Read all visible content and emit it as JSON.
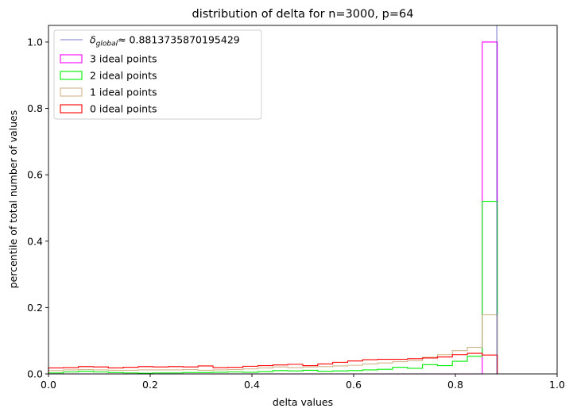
{
  "chart_data": {
    "type": "histogram",
    "title": "distribution of delta for n=3000, p=64",
    "xlabel": "delta values",
    "ylabel": "percentile of total number of values",
    "xlim": [
      0,
      1.0
    ],
    "ylim": [
      0,
      1.05
    ],
    "xticks": [
      "0.0",
      "0.2",
      "0.4",
      "0.6",
      "0.8",
      "1.0"
    ],
    "xtick_values": [
      0,
      0.2,
      0.4,
      0.6,
      0.8,
      1.0
    ],
    "yticks": [
      "0.0",
      "0.2",
      "0.4",
      "0.6",
      "0.8",
      "1.0"
    ],
    "ytick_values": [
      0,
      0.2,
      0.4,
      0.6,
      0.8,
      1.0
    ],
    "legend_position": "top-left",
    "reference_line": {
      "x": 0.8813735870195429,
      "label_symbol": "δ",
      "label_subscript": "global",
      "label_value": "≈ 0.8813735870195429",
      "color": "#4b4bbf"
    },
    "bin_edges": [
      0.0,
      0.0294,
      0.0588,
      0.0882,
      0.1176,
      0.1471,
      0.1765,
      0.2059,
      0.2353,
      0.2647,
      0.2941,
      0.3235,
      0.3529,
      0.3824,
      0.4118,
      0.4412,
      0.4706,
      0.5,
      0.5294,
      0.5588,
      0.5882,
      0.6176,
      0.6471,
      0.6765,
      0.7059,
      0.7353,
      0.7647,
      0.7941,
      0.8235,
      0.8529,
      0.8824
    ],
    "series": [
      {
        "name": "3 ideal points",
        "color": "#ff00ff",
        "values": [
          0,
          0,
          0,
          0,
          0,
          0,
          0,
          0,
          0,
          0,
          0,
          0,
          0,
          0,
          0,
          0,
          0,
          0,
          0,
          0,
          0,
          0,
          0,
          0,
          0,
          0,
          0,
          0,
          0,
          1.0
        ]
      },
      {
        "name": "2 ideal points",
        "color": "#00ee00",
        "values": [
          0.003,
          0.006,
          0.008,
          0.006,
          0.004,
          0.003,
          0.002,
          0.003,
          0.003,
          0.004,
          0.004,
          0.005,
          0.006,
          0.005,
          0.007,
          0.01,
          0.009,
          0.011,
          0.008,
          0.009,
          0.01,
          0.012,
          0.014,
          0.02,
          0.017,
          0.028,
          0.025,
          0.038,
          0.053,
          0.52
        ]
      },
      {
        "name": "1 ideal points",
        "color": "#d2b48c",
        "values": [
          0.01,
          0.012,
          0.013,
          0.012,
          0.011,
          0.011,
          0.012,
          0.012,
          0.012,
          0.013,
          0.011,
          0.012,
          0.013,
          0.015,
          0.018,
          0.021,
          0.019,
          0.021,
          0.022,
          0.024,
          0.026,
          0.03,
          0.033,
          0.037,
          0.04,
          0.05,
          0.058,
          0.07,
          0.08,
          0.178
        ]
      },
      {
        "name": "0 ideal points",
        "color": "#ff0000",
        "values": [
          0.018,
          0.019,
          0.022,
          0.021,
          0.018,
          0.02,
          0.022,
          0.021,
          0.022,
          0.021,
          0.024,
          0.019,
          0.02,
          0.023,
          0.025,
          0.027,
          0.029,
          0.025,
          0.03,
          0.035,
          0.039,
          0.043,
          0.044,
          0.044,
          0.046,
          0.048,
          0.051,
          0.058,
          0.062,
          0.057
        ]
      }
    ]
  }
}
